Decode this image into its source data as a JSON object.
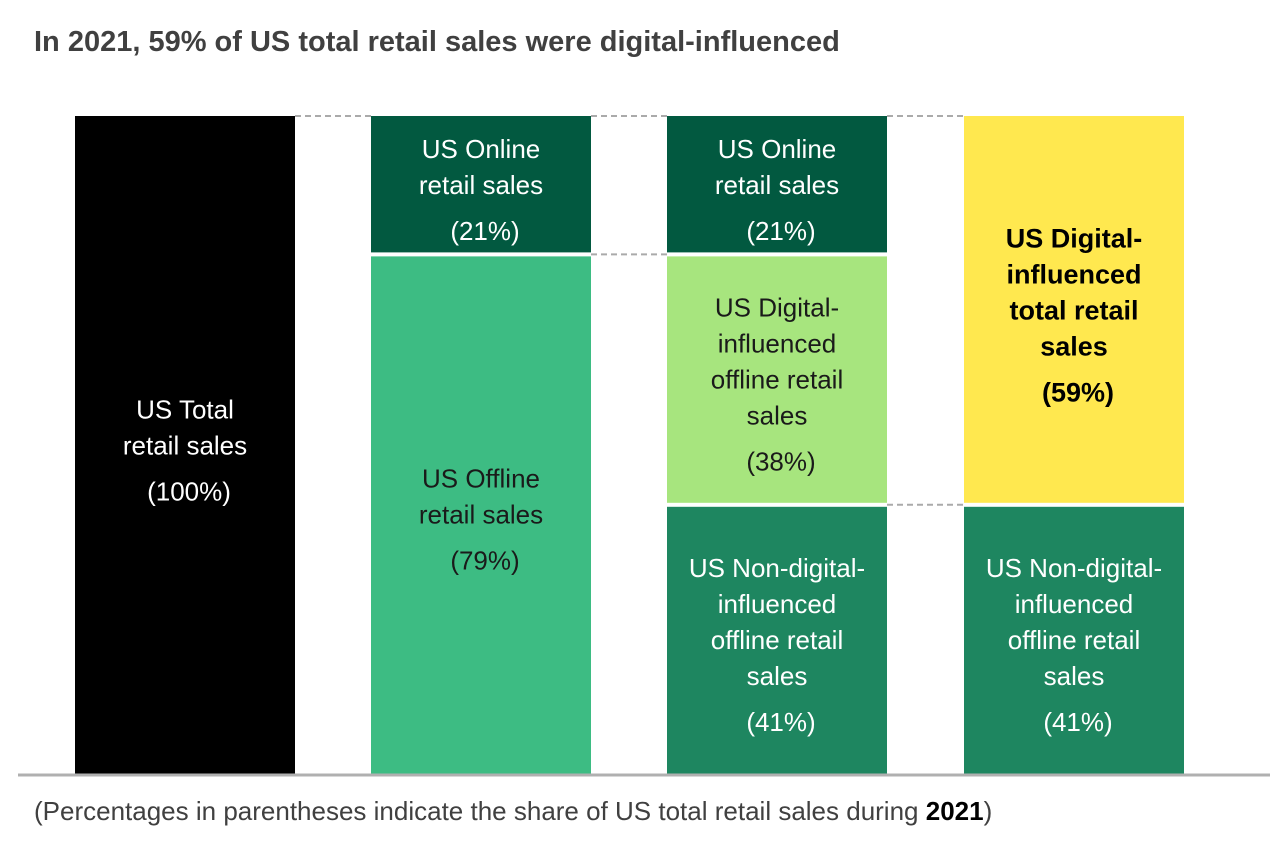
{
  "chart_data": {
    "type": "bar",
    "title": "In 2021, 59% of US total retail sales were digital-influenced",
    "ylim": [
      0,
      100
    ],
    "grid": false,
    "legend": "none",
    "bars": [
      {
        "segments": [
          {
            "lines": [
              "US Total",
              "retail sales",
              "(100%)"
            ],
            "value": 100,
            "color": "#000000",
            "text_color": "#ffffff",
            "bold": false
          }
        ]
      },
      {
        "segments": [
          {
            "lines": [
              "US Online",
              "retail sales",
              "(21%)"
            ],
            "value": 21,
            "color": "#025940",
            "text_color": "#ffffff",
            "bold": false
          },
          {
            "lines": [
              "US Offline",
              "retail sales",
              "(79%)"
            ],
            "value": 79,
            "color": "#3dbc83",
            "text_color": "#1a1a1a",
            "bold": false
          }
        ]
      },
      {
        "segments": [
          {
            "lines": [
              "US Online",
              "retail sales",
              "(21%)"
            ],
            "value": 21,
            "color": "#025940",
            "text_color": "#ffffff",
            "bold": false
          },
          {
            "lines": [
              "US Digital-",
              "influenced",
              "offline retail",
              "sales",
              "(38%)"
            ],
            "value": 38,
            "color": "#a7e57e",
            "text_color": "#1a1a1a",
            "bold": false
          },
          {
            "lines": [
              "US Non-digital-",
              "influenced",
              "offline retail",
              "sales",
              "(41%)"
            ],
            "value": 41,
            "color": "#1e8660",
            "text_color": "#ffffff",
            "bold": false
          }
        ]
      },
      {
        "segments": [
          {
            "lines": [
              "US Digital-",
              "influenced",
              "total retail",
              "sales",
              "(59%)"
            ],
            "value": 59,
            "color": "#ffe84f",
            "text_color": "#000000",
            "bold": true
          },
          {
            "lines": [
              "US Non-digital-",
              "influenced",
              "offline retail",
              "sales",
              "(41%)"
            ],
            "value": 41,
            "color": "#1e8660",
            "text_color": "#ffffff",
            "bold": false
          }
        ]
      }
    ]
  },
  "footnote": {
    "text": "(Percentages in parentheses indicate the share of US total retail sales during ",
    "year": "2021",
    "close": ")"
  }
}
